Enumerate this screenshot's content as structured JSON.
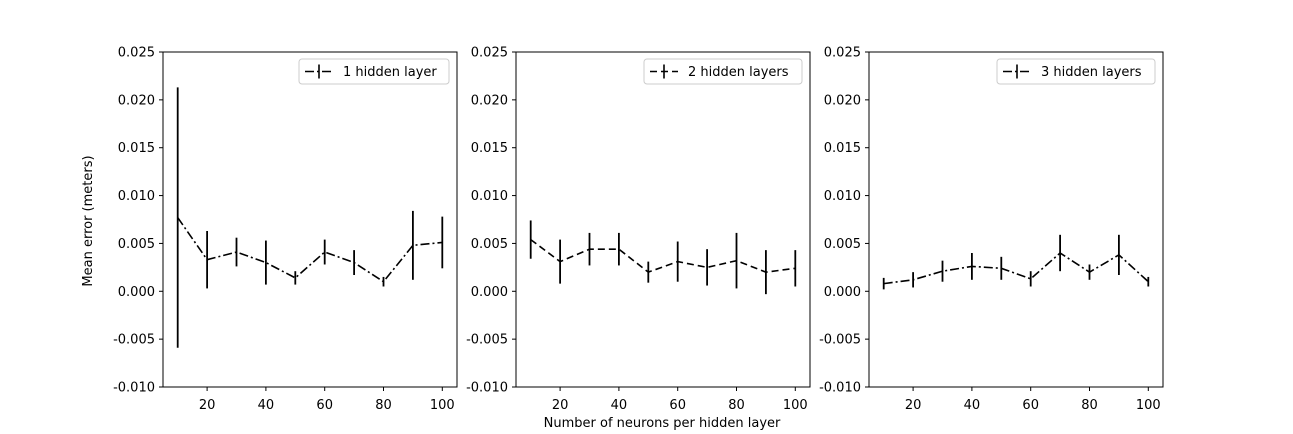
{
  "figure": {
    "xlabel": "Number of neurons per hidden layer",
    "ylabel": "Mean error (meters)"
  },
  "chart_data": [
    {
      "type": "line",
      "legend": "1 hidden layer",
      "linestyle": "dashdot",
      "color": "#000000",
      "x": [
        10,
        20,
        30,
        40,
        50,
        60,
        70,
        80,
        90,
        100
      ],
      "y": [
        0.0077,
        0.0033,
        0.0041,
        0.003,
        0.0014,
        0.0041,
        0.003,
        0.001,
        0.0048,
        0.0051
      ],
      "yerr": [
        0.0136,
        0.003,
        0.0015,
        0.0023,
        0.0007,
        0.0013,
        0.0013,
        0.0005,
        0.0036,
        0.0027
      ],
      "xlim": [
        5,
        105
      ],
      "ylim": [
        -0.01,
        0.025
      ],
      "xticks": [
        20,
        40,
        60,
        80,
        100
      ],
      "yticks": [
        "-0.010",
        "-0.005",
        "0.000",
        "0.005",
        "0.010",
        "0.015",
        "0.020",
        "0.025"
      ],
      "legend_position": "upper right"
    },
    {
      "type": "line",
      "legend": "2 hidden layers",
      "linestyle": "dashed",
      "color": "#000000",
      "x": [
        10,
        20,
        30,
        40,
        50,
        60,
        70,
        80,
        90,
        100
      ],
      "y": [
        0.0054,
        0.0031,
        0.0044,
        0.0044,
        0.002,
        0.0031,
        0.0025,
        0.0032,
        0.002,
        0.0024
      ],
      "yerr": [
        0.002,
        0.0023,
        0.0017,
        0.0017,
        0.0011,
        0.0021,
        0.0019,
        0.0029,
        0.0023,
        0.0019
      ],
      "xlim": [
        5,
        105
      ],
      "ylim": [
        -0.01,
        0.025
      ],
      "xticks": [
        20,
        40,
        60,
        80,
        100
      ],
      "yticks": [
        "-0.010",
        "-0.005",
        "0.000",
        "0.005",
        "0.010",
        "0.015",
        "0.020",
        "0.025"
      ],
      "legend_position": "upper right"
    },
    {
      "type": "line",
      "legend": "3 hidden layers",
      "linestyle": "dashdot",
      "color": "#000000",
      "x": [
        10,
        20,
        30,
        40,
        50,
        60,
        70,
        80,
        90,
        100
      ],
      "y": [
        0.0008,
        0.0012,
        0.0021,
        0.0026,
        0.0024,
        0.0013,
        0.004,
        0.002,
        0.0038,
        0.001
      ],
      "yerr": [
        0.0006,
        0.0008,
        0.0011,
        0.0014,
        0.0012,
        0.0008,
        0.0019,
        0.0008,
        0.0021,
        0.0005
      ],
      "xlim": [
        5,
        105
      ],
      "ylim": [
        -0.01,
        0.025
      ],
      "xticks": [
        20,
        40,
        60,
        80,
        100
      ],
      "yticks": [
        "-0.010",
        "-0.005",
        "0.000",
        "0.005",
        "0.010",
        "0.015",
        "0.020",
        "0.025"
      ],
      "legend_position": "upper right"
    }
  ]
}
